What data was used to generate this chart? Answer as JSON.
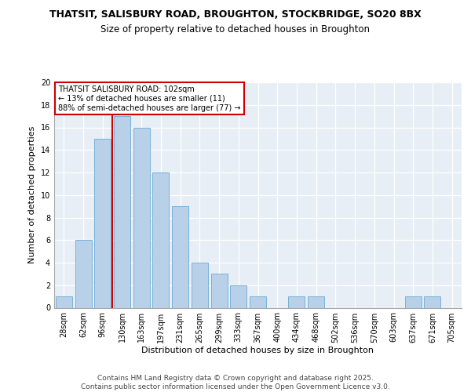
{
  "title1": "THATSIT, SALISBURY ROAD, BROUGHTON, STOCKBRIDGE, SO20 8BX",
  "title2": "Size of property relative to detached houses in Broughton",
  "xlabel": "Distribution of detached houses by size in Broughton",
  "ylabel": "Number of detached properties",
  "categories": [
    "28sqm",
    "62sqm",
    "96sqm",
    "130sqm",
    "163sqm",
    "197sqm",
    "231sqm",
    "265sqm",
    "299sqm",
    "333sqm",
    "367sqm",
    "400sqm",
    "434sqm",
    "468sqm",
    "502sqm",
    "536sqm",
    "570sqm",
    "603sqm",
    "637sqm",
    "671sqm",
    "705sqm"
  ],
  "values": [
    1,
    6,
    15,
    17,
    16,
    12,
    9,
    4,
    3,
    2,
    1,
    0,
    1,
    1,
    0,
    0,
    0,
    0,
    1,
    1,
    0
  ],
  "bar_color": "#b8d0e8",
  "bar_edge_color": "#6aaad4",
  "vline_x_index": 2.5,
  "annotation_text": "THATSIT SALISBURY ROAD: 102sqm\n← 13% of detached houses are smaller (11)\n88% of semi-detached houses are larger (77) →",
  "vline_color": "#cc0000",
  "annotation_box_edge_color": "#cc0000",
  "background_color": "#e8eef5",
  "ylim": [
    0,
    20
  ],
  "yticks": [
    0,
    2,
    4,
    6,
    8,
    10,
    12,
    14,
    16,
    18,
    20
  ],
  "footer_text": "Contains HM Land Registry data © Crown copyright and database right 2025.\nContains public sector information licensed under the Open Government Licence v3.0.",
  "title1_fontsize": 9,
  "title2_fontsize": 8.5,
  "xlabel_fontsize": 8,
  "ylabel_fontsize": 8,
  "annotation_fontsize": 7,
  "footer_fontsize": 6.5,
  "tick_fontsize": 7
}
